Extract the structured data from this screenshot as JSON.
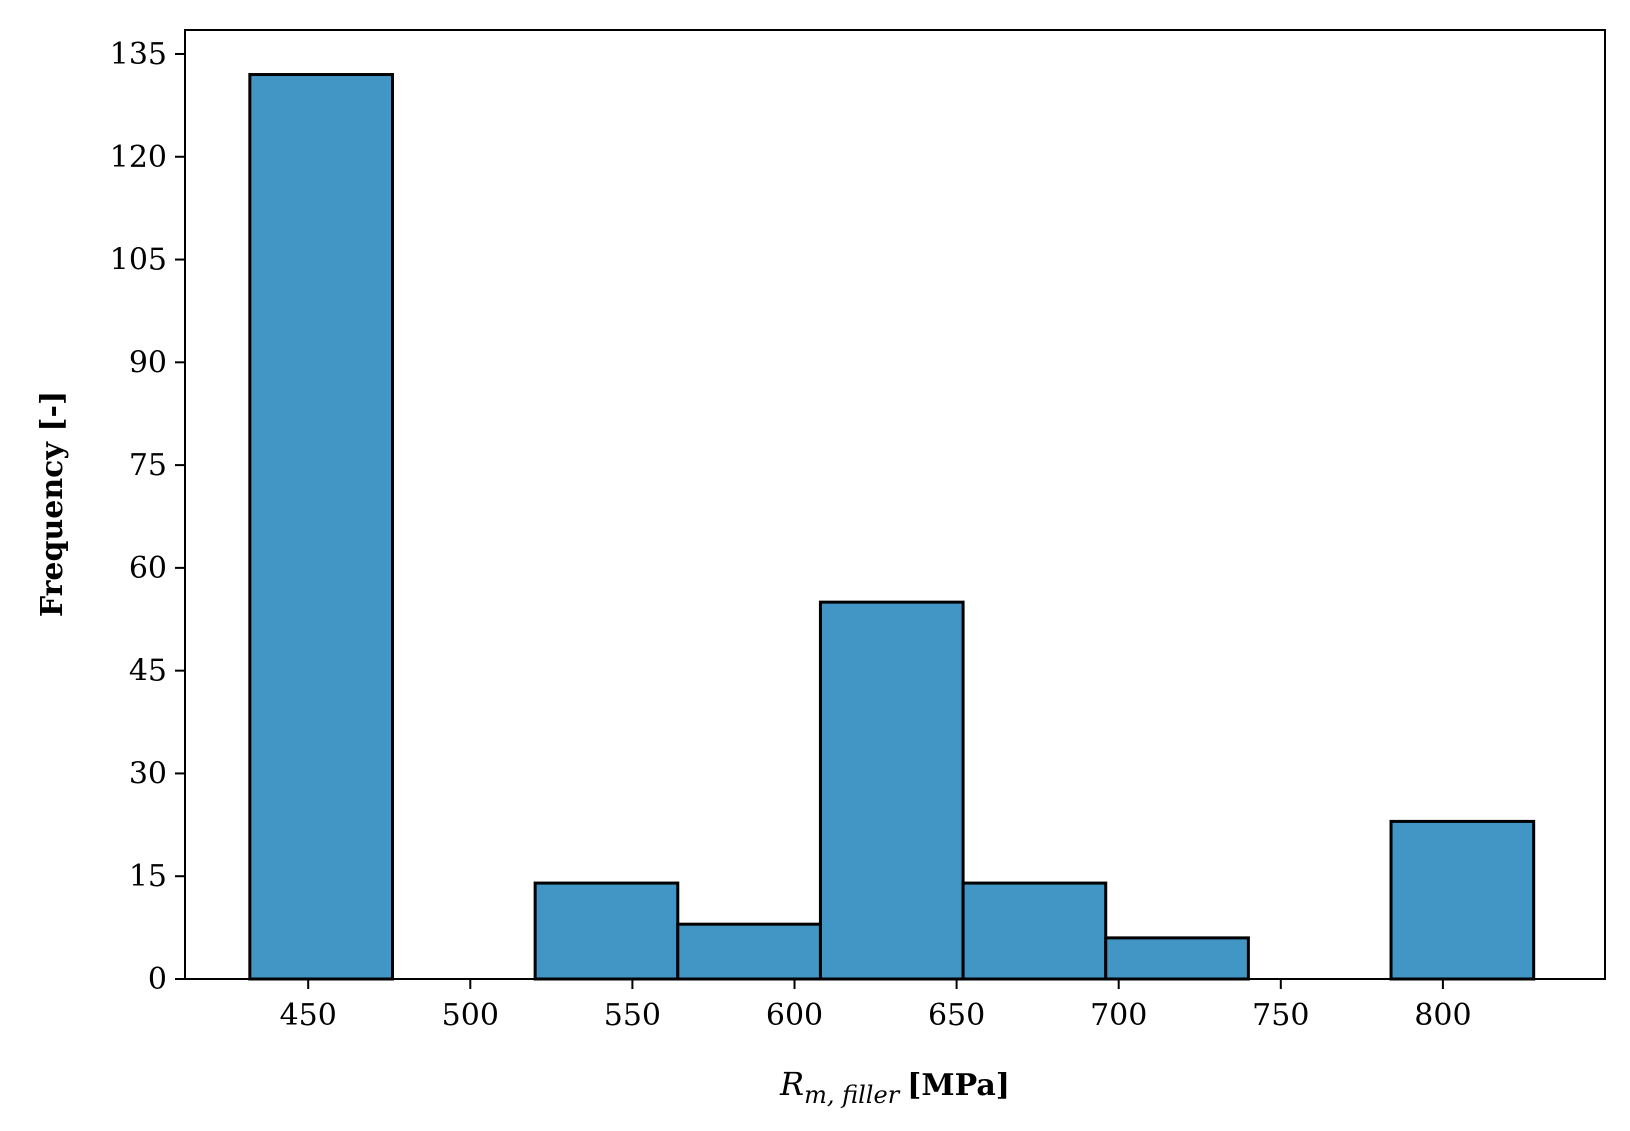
{
  "chart_data": {
    "type": "bar",
    "subtype": "histogram",
    "bins": [
      {
        "x0": 432,
        "x1": 476,
        "count": 132
      },
      {
        "x0": 476,
        "x1": 520,
        "count": 0
      },
      {
        "x0": 520,
        "x1": 564,
        "count": 14
      },
      {
        "x0": 564,
        "x1": 608,
        "count": 8
      },
      {
        "x0": 608,
        "x1": 652,
        "count": 55
      },
      {
        "x0": 652,
        "x1": 696,
        "count": 14
      },
      {
        "x0": 696,
        "x1": 740,
        "count": 6
      },
      {
        "x0": 740,
        "x1": 784,
        "count": 0
      },
      {
        "x0": 784,
        "x1": 828,
        "count": 23
      }
    ],
    "xlabel_main": "R",
    "xlabel_sub": "m, filler",
    "xlabel_unit": "[MPa]",
    "ylabel": "Frequency [-]",
    "xticks": [
      450,
      500,
      550,
      600,
      650,
      700,
      750,
      800
    ],
    "yticks": [
      0,
      15,
      30,
      45,
      60,
      75,
      90,
      105,
      120,
      135
    ],
    "xlim": [
      412,
      850
    ],
    "ylim": [
      0,
      138.5
    ],
    "grid": false,
    "colors": {
      "bar_fill": "#4296c5",
      "bar_edge": "#000000",
      "axis": "#000000"
    }
  }
}
